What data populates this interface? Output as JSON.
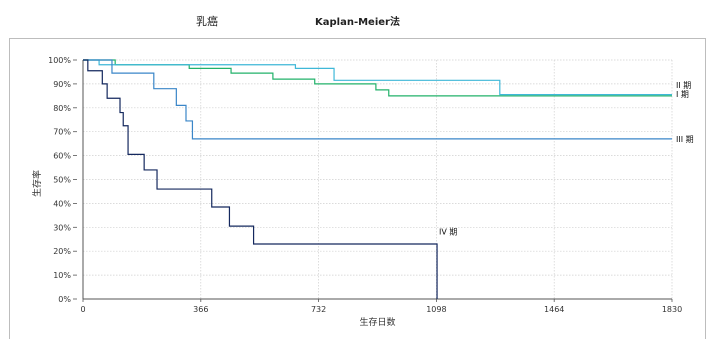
{
  "header": {
    "left_title": "乳癌",
    "right_title": "Kaplan-Meier法"
  },
  "chart_data": {
    "type": "line",
    "step": true,
    "title": "Kaplan-Meier法",
    "xlabel": "生存日数",
    "ylabel": "生存率",
    "xlim": [
      0,
      1830
    ],
    "ylim": [
      0,
      100
    ],
    "x_ticks": [
      0,
      366,
      732,
      1098,
      1464,
      1830
    ],
    "y_ticks": [
      0,
      10,
      20,
      30,
      40,
      50,
      60,
      70,
      80,
      90,
      100
    ],
    "y_tick_suffix": "%",
    "grid": true,
    "series": [
      {
        "name": "I 期",
        "color": "#22b26a",
        "points": [
          [
            0,
            100
          ],
          [
            100,
            98
          ],
          [
            330,
            96.5
          ],
          [
            460,
            94.5
          ],
          [
            590,
            92
          ],
          [
            720,
            90
          ],
          [
            910,
            87.5
          ],
          [
            950,
            85
          ],
          [
            1830,
            85
          ]
        ]
      },
      {
        "name": "II 期",
        "color": "#3fb8d8",
        "points": [
          [
            0,
            100
          ],
          [
            50,
            98
          ],
          [
            660,
            96.5
          ],
          [
            780,
            91.5
          ],
          [
            1295,
            85.5
          ],
          [
            1830,
            85.5
          ]
        ]
      },
      {
        "name": "III 期",
        "color": "#3a86c8",
        "points": [
          [
            0,
            100
          ],
          [
            90,
            94.5
          ],
          [
            220,
            88
          ],
          [
            290,
            81
          ],
          [
            320,
            74.5
          ],
          [
            340,
            67
          ],
          [
            1830,
            67
          ]
        ]
      },
      {
        "name": "IV 期",
        "color": "#14285e",
        "points": [
          [
            0,
            100
          ],
          [
            15,
            95.5
          ],
          [
            60,
            90
          ],
          [
            75,
            84
          ],
          [
            115,
            78
          ],
          [
            125,
            72.5
          ],
          [
            140,
            60.5
          ],
          [
            190,
            54
          ],
          [
            230,
            46
          ],
          [
            400,
            38.5
          ],
          [
            455,
            30.5
          ],
          [
            530,
            23
          ],
          [
            1100,
            23
          ],
          [
            1100,
            0
          ]
        ]
      }
    ]
  }
}
